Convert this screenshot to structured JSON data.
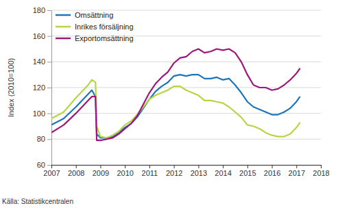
{
  "chart_data": {
    "type": "line",
    "y_label": "Index (2010=100)",
    "source": "Källa: Statistikcentralen",
    "x": [
      2007,
      2007.5,
      2008,
      2008.5,
      2008.65,
      2008.8,
      2008.85,
      2009,
      2009.25,
      2009.5,
      2009.75,
      2010,
      2010.25,
      2010.5,
      2010.75,
      2011,
      2011.25,
      2011.5,
      2011.75,
      2012,
      2012.25,
      2012.5,
      2012.75,
      2013,
      2013.25,
      2013.5,
      2013.75,
      2014,
      2014.25,
      2014.5,
      2014.75,
      2015,
      2015.25,
      2015.5,
      2015.75,
      2016,
      2016.25,
      2016.5,
      2016.75,
      2017,
      2017.15
    ],
    "series": [
      {
        "name": "Omsättning",
        "color": "#1b75bc",
        "values": [
          91,
          96,
          105,
          115,
          118,
          113,
          84,
          81,
          81,
          82,
          85,
          89,
          92,
          97,
          104,
          111,
          117,
          121,
          124,
          129,
          130,
          129,
          130,
          130,
          127,
          127,
          128,
          126,
          127,
          122,
          116,
          109,
          105,
          103,
          101,
          99,
          99,
          101,
          104,
          109,
          113
        ]
      },
      {
        "name": "Inrikes försäljning",
        "color": "#b7d443",
        "values": [
          96,
          101,
          112,
          122,
          126,
          124,
          90,
          82,
          81,
          83,
          86,
          91,
          94,
          99,
          105,
          111,
          114,
          116,
          118,
          121,
          121,
          118,
          116,
          114,
          110,
          110,
          109,
          108,
          105,
          101,
          97,
          91,
          90,
          88,
          85,
          83,
          82,
          82,
          84,
          89,
          93
        ]
      },
      {
        "name": "Exportomsättning",
        "color": "#a1167a",
        "values": [
          85,
          91,
          100,
          110,
          113,
          113,
          79,
          79,
          80,
          81,
          84,
          88,
          92,
          98,
          107,
          116,
          123,
          128,
          132,
          139,
          143,
          144,
          148,
          150,
          147,
          148,
          150,
          149,
          150,
          147,
          140,
          130,
          122,
          120,
          120,
          118,
          119,
          122,
          126,
          131,
          135
        ]
      }
    ],
    "xlim": [
      2007,
      2018
    ],
    "xticks": [
      2007,
      2008,
      2009,
      2010,
      2011,
      2012,
      2013,
      2014,
      2015,
      2016,
      2017,
      2018
    ],
    "ylim": [
      60,
      180
    ],
    "yticks": [
      60,
      80,
      100,
      120,
      140,
      160,
      180
    ],
    "grid": true,
    "legend": "upper left"
  }
}
